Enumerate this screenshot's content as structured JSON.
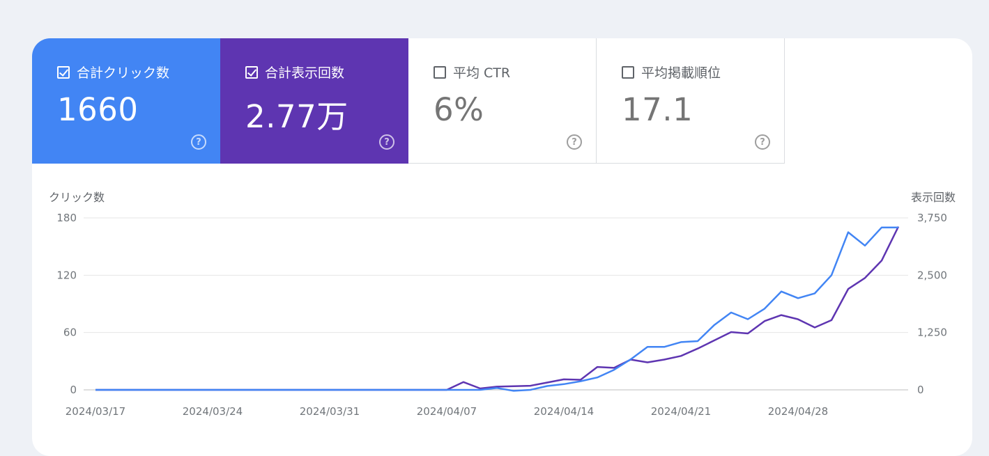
{
  "metrics": {
    "clicks": {
      "label": "合計クリック数",
      "value": "1660",
      "checked": true,
      "color": "#4285f4"
    },
    "impressions": {
      "label": "合計表示回数",
      "value": "2.77万",
      "checked": true,
      "color": "#5e35b1"
    },
    "ctr": {
      "label": "平均 CTR",
      "value": "6%",
      "checked": false
    },
    "position": {
      "label": "平均掲載順位",
      "value": "17.1",
      "checked": false
    },
    "help_glyph": "?"
  },
  "chart_data": {
    "type": "line",
    "ylabel_left": "クリック数",
    "ylabel_right": "表示回数",
    "left_ticks": [
      "0",
      "60",
      "120",
      "180"
    ],
    "left_tick_values": [
      0,
      60,
      120,
      180
    ],
    "right_ticks": [
      "0",
      "1,250",
      "2,500",
      "3,750"
    ],
    "right_tick_values": [
      0,
      1250,
      2500,
      3750
    ],
    "ylim_left": [
      0,
      180
    ],
    "ylim_right": [
      0,
      3750
    ],
    "x_tick_labels": [
      "2024/03/17",
      "2024/03/24",
      "2024/03/31",
      "2024/04/07",
      "2024/04/14",
      "2024/04/21",
      "2024/04/28"
    ],
    "x_tick_index": [
      0,
      7,
      14,
      21,
      28,
      35,
      42
    ],
    "grid": true,
    "series": [
      {
        "name": "クリック数",
        "axis": "left",
        "color": "#4285f4",
        "values": [
          0,
          0,
          0,
          0,
          0,
          0,
          0,
          0,
          0,
          0,
          0,
          0,
          0,
          0,
          0,
          0,
          0,
          0,
          0,
          0,
          0,
          0,
          0,
          0,
          2,
          -1,
          0,
          4,
          6,
          9,
          13,
          21,
          32,
          45,
          45,
          50,
          51,
          68,
          81,
          74,
          85,
          103,
          96,
          101,
          120,
          165,
          151,
          170,
          170
        ]
      },
      {
        "name": "表示回数",
        "axis": "right",
        "color": "#5e35b1",
        "values": [
          0,
          0,
          0,
          0,
          0,
          0,
          0,
          0,
          0,
          0,
          0,
          0,
          0,
          0,
          0,
          0,
          0,
          0,
          0,
          0,
          0,
          0,
          170,
          30,
          70,
          80,
          90,
          160,
          230,
          220,
          500,
          480,
          660,
          600,
          660,
          740,
          900,
          1080,
          1260,
          1230,
          1500,
          1630,
          1540,
          1360,
          1520,
          2200,
          2440,
          2820,
          3560
        ]
      }
    ]
  }
}
